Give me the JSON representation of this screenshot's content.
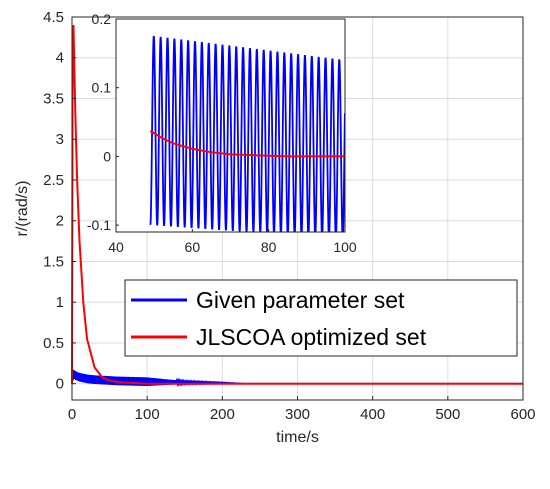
{
  "chart_data": [
    {
      "type": "line",
      "xlabel": "time/s",
      "ylabel": "r/(rad/s)",
      "xlim": [
        0,
        600
      ],
      "ylim": [
        -0.2,
        4.5
      ],
      "xticks": [
        "0",
        "100",
        "200",
        "300",
        "400",
        "500",
        "600"
      ],
      "yticks": [
        "0",
        "0.5",
        "1",
        "1.5",
        "2",
        "2.5",
        "3",
        "3.5",
        "4",
        "4.5"
      ],
      "grid": true,
      "legend": {
        "placement": "center-right"
      },
      "series": [
        {
          "name": "Given parameter set",
          "color": "#0000ff",
          "x": [
            0,
            2,
            5,
            10,
            20,
            30,
            40,
            50,
            60,
            80,
            100,
            150,
            200,
            230
          ],
          "y": [
            0,
            0.12,
            0.1,
            0.08,
            0.06,
            0.05,
            0.045,
            0.04,
            0.035,
            0.03,
            0.025,
            0.015,
            0.01,
            0.0
          ],
          "amplitude": [
            0,
            0.1,
            0.1,
            0.1,
            0.1,
            0.1,
            0.1,
            0.1,
            0.1,
            0.1,
            0.1,
            0.03,
            0.01,
            0
          ]
        },
        {
          "name": "JLSCOA optimized set",
          "color": "#ff0000",
          "x": [
            0,
            1,
            2,
            3,
            5,
            7,
            10,
            15,
            20,
            30,
            40,
            50,
            60,
            100,
            600
          ],
          "y": [
            0,
            4.3,
            4.4,
            3.9,
            3.1,
            2.45,
            1.75,
            1.0,
            0.55,
            0.2,
            0.08,
            0.04,
            0.02,
            0,
            0
          ]
        }
      ]
    },
    {
      "type": "line",
      "xlim": [
        40,
        100
      ],
      "ylim": [
        -0.11,
        0.2
      ],
      "xticks": [
        "40",
        "60",
        "80",
        "100"
      ],
      "yticks": [
        "-0.1",
        "0",
        "0.1",
        "0.2"
      ],
      "grid": false,
      "series": [
        {
          "name": "Given parameter set",
          "color": "#0000ff",
          "x_start": 49,
          "x_end": 100,
          "oscillation_period": 1.8,
          "upper_envelope": [
            [
              50,
              0.175
            ],
            [
              100,
              0.14
            ]
          ],
          "lower_envelope": [
            [
              50,
              -0.1
            ],
            [
              100,
              -0.12
            ]
          ]
        },
        {
          "name": "JLSCOA optimized set",
          "color": "#ff0000",
          "x": [
            49,
            52,
            55,
            60,
            65,
            70,
            75,
            80,
            85,
            90,
            95,
            100
          ],
          "y": [
            0.037,
            0.027,
            0.019,
            0.011,
            0.006,
            0.003,
            0.002,
            0.001,
            0.0,
            0.0,
            0.0,
            0.0
          ]
        }
      ]
    }
  ]
}
